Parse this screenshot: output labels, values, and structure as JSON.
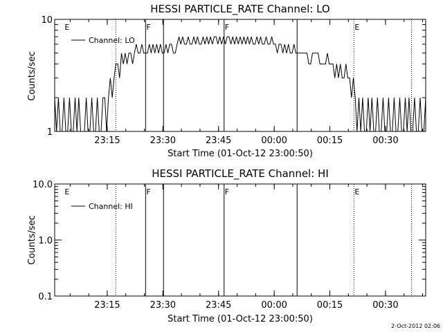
{
  "chart_data": [
    {
      "type": "line",
      "title": "HESSI PARTICLE_RATE Channel: LO",
      "xlabel": "Start Time (01-Oct-12 23:00:50)",
      "ylabel": "Counts/sec",
      "yscale": "log",
      "ylim": [
        1,
        10
      ],
      "yticks": [
        "1",
        "10"
      ],
      "xlim_sec": [
        0,
        6000
      ],
      "xticks": [
        {
          "sec": 850,
          "label": "23:15"
        },
        {
          "sec": 1750,
          "label": "23:30"
        },
        {
          "sec": 2650,
          "label": "23:45"
        },
        {
          "sec": 3550,
          "label": "00:00"
        },
        {
          "sec": 4450,
          "label": "00:15"
        },
        {
          "sec": 5350,
          "label": "00:30"
        }
      ],
      "legend": {
        "label": "Channel: LO",
        "position": "top-left"
      },
      "markers": [
        {
          "sec": 150,
          "label": "E",
          "style": "none"
        },
        {
          "sec": 1470,
          "label": "F",
          "style": "solid"
        },
        {
          "sec": 2740,
          "label": "F",
          "style": "solid"
        },
        {
          "sec": 4840,
          "label": "E",
          "style": "dotted"
        }
      ],
      "vlines": [
        {
          "sec": 990,
          "style": "dotted"
        },
        {
          "sec": 1470,
          "style": "solid"
        },
        {
          "sec": 1760,
          "style": "solid"
        },
        {
          "sec": 2740,
          "style": "solid"
        },
        {
          "sec": 3920,
          "style": "solid"
        },
        {
          "sec": 4840,
          "style": "dotted"
        },
        {
          "sec": 5770,
          "style": "dotted"
        }
      ],
      "series": [
        {
          "x_sec": [
            0,
            30,
            60,
            90,
            120,
            150,
            180,
            210,
            240,
            270,
            300,
            330,
            360,
            390,
            420,
            450,
            480,
            510,
            540,
            570,
            600,
            630,
            660,
            690,
            720,
            750,
            780,
            810,
            840,
            870,
            900,
            930,
            960,
            990,
            1020,
            1050,
            1080,
            1110,
            1140,
            1170,
            1200,
            1230,
            1260,
            1290,
            1320,
            1350,
            1380,
            1410,
            1440,
            1470,
            1500,
            1530,
            1560,
            1590,
            1620,
            1650,
            1680,
            1710,
            1740,
            1770,
            1800,
            1830,
            1860,
            1890,
            1920,
            1950,
            1980,
            2010,
            2040,
            2070,
            2100,
            2130,
            2160,
            2190,
            2220,
            2250,
            2280,
            2310,
            2340,
            2370,
            2400,
            2430,
            2460,
            2490,
            2520,
            2550,
            2580,
            2610,
            2640,
            2670,
            2700,
            2730,
            2760,
            2790,
            2820,
            2850,
            2880,
            2910,
            2940,
            2970,
            3000,
            3030,
            3060,
            3090,
            3120,
            3150,
            3180,
            3210,
            3240,
            3270,
            3300,
            3330,
            3360,
            3390,
            3420,
            3450,
            3480,
            3510,
            3540,
            3570,
            3600,
            3630,
            3660,
            3690,
            3720,
            3750,
            3780,
            3810,
            3840,
            3870,
            3900,
            3930,
            3960,
            3990,
            4020,
            4050,
            4080,
            4110,
            4140,
            4170,
            4200,
            4230,
            4260,
            4290,
            4320,
            4350,
            4380,
            4410,
            4440,
            4470,
            4500,
            4530,
            4560,
            4590,
            4620,
            4650,
            4680,
            4710,
            4740,
            4770,
            4800,
            4830,
            4860,
            4890,
            4920,
            4950,
            4980,
            5010,
            5040,
            5070,
            5100,
            5130,
            5160,
            5190,
            5220,
            5250,
            5280,
            5310,
            5340,
            5370,
            5400,
            5430,
            5460,
            5490,
            5520,
            5550,
            5580,
            5610,
            5640,
            5670,
            5700,
            5730,
            5760,
            5790,
            5820,
            5850,
            5880,
            5910,
            5940,
            5970,
            6000
          ],
          "y": [
            2,
            1,
            2,
            1,
            1,
            2,
            1,
            1,
            2,
            1,
            1,
            2,
            1,
            2,
            1,
            1,
            1,
            2,
            1,
            1,
            2,
            1,
            1,
            2,
            1,
            1,
            2,
            2,
            1,
            2,
            3,
            2,
            3,
            4,
            4,
            3,
            5,
            4,
            5,
            4,
            5,
            5,
            4,
            5,
            6,
            5,
            5,
            6,
            5,
            5,
            5,
            6,
            5,
            6,
            5,
            6,
            5,
            6,
            5,
            5,
            6,
            5,
            6,
            6,
            5,
            5,
            6,
            7,
            6,
            7,
            6,
            6,
            7,
            6,
            6,
            7,
            6,
            7,
            6,
            6,
            7,
            6,
            7,
            6,
            7,
            6,
            7,
            7,
            6,
            7,
            6,
            7,
            6,
            7,
            7,
            6,
            7,
            6,
            7,
            6,
            7,
            6,
            7,
            6,
            7,
            6,
            7,
            6,
            6,
            7,
            6,
            7,
            6,
            6,
            7,
            6,
            6,
            7,
            6,
            6,
            5,
            6,
            6,
            5,
            6,
            5,
            6,
            5,
            5,
            6,
            5,
            5,
            5,
            5,
            5,
            5,
            5,
            4,
            4,
            5,
            5,
            5,
            5,
            4,
            4,
            4,
            4,
            5,
            4,
            4,
            4,
            3,
            4,
            3,
            4,
            3,
            3,
            4,
            3,
            3,
            2,
            3,
            2,
            1,
            2,
            1,
            2,
            1,
            1,
            2,
            1,
            2,
            1,
            1,
            2,
            1,
            1,
            2,
            1,
            1,
            2,
            1,
            1,
            2,
            1,
            1,
            2,
            1,
            1,
            2,
            1,
            2,
            1,
            1,
            2,
            1,
            1,
            2,
            1,
            1,
            2
          ]
        }
      ]
    },
    {
      "type": "line",
      "title": "HESSI PARTICLE_RATE Channel: HI",
      "xlabel": "Start Time (01-Oct-12 23:00:50)",
      "ylabel": "Counts/sec",
      "yscale": "log",
      "ylim": [
        0.1,
        10
      ],
      "yticks": [
        "0.1",
        "1.0",
        "10.0"
      ],
      "xlim_sec": [
        0,
        6000
      ],
      "xticks": [
        {
          "sec": 850,
          "label": "23:15"
        },
        {
          "sec": 1750,
          "label": "23:30"
        },
        {
          "sec": 2650,
          "label": "23:45"
        },
        {
          "sec": 3550,
          "label": "00:00"
        },
        {
          "sec": 4450,
          "label": "00:15"
        },
        {
          "sec": 5350,
          "label": "00:30"
        }
      ],
      "legend": {
        "label": "Channel: HI",
        "position": "top-left"
      },
      "markers": [
        {
          "sec": 150,
          "label": "E",
          "style": "none"
        },
        {
          "sec": 1470,
          "label": "F",
          "style": "solid"
        },
        {
          "sec": 2740,
          "label": "F",
          "style": "solid"
        },
        {
          "sec": 4840,
          "label": "E",
          "style": "dotted"
        }
      ],
      "vlines": [
        {
          "sec": 990,
          "style": "dotted"
        },
        {
          "sec": 1470,
          "style": "solid"
        },
        {
          "sec": 1760,
          "style": "solid"
        },
        {
          "sec": 2740,
          "style": "solid"
        },
        {
          "sec": 3920,
          "style": "solid"
        },
        {
          "sec": 4840,
          "style": "dotted"
        },
        {
          "sec": 5770,
          "style": "dotted"
        }
      ],
      "series": [
        {
          "x_sec": [],
          "y": []
        }
      ]
    }
  ],
  "footer": {
    "timestamp": "2-Oct-2012 02:06"
  }
}
